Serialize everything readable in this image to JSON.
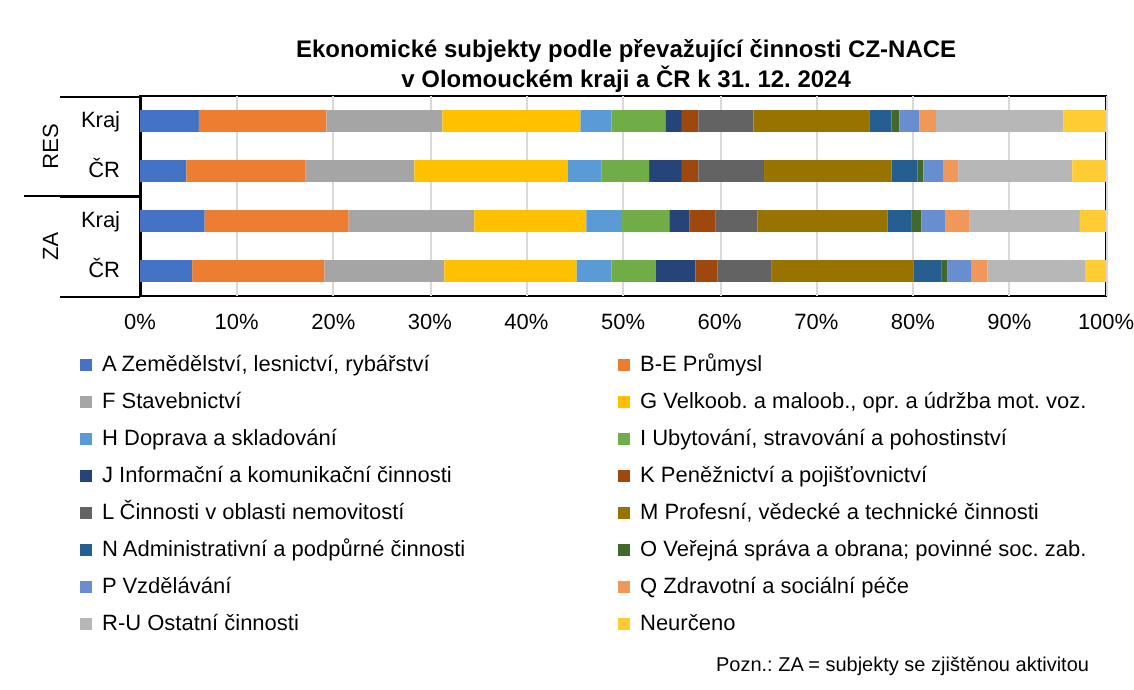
{
  "chart_data": {
    "type": "bar",
    "orientation": "horizontal",
    "stacked": true,
    "title": "Ekonomické subjekty podle převažující činnosti CZ-NACE\nv Olomouckém kraji a ČR k 31. 12. 2024",
    "categories": [
      "Kraj",
      "ČR",
      "Kraj",
      "ČR"
    ],
    "annotations": [
      "RES",
      "ZA",
      "Pozn.: ZA = subjekty se zjištěnou aktivitou"
    ],
    "xlim": [
      0,
      100
    ],
    "xticks": [
      {
        "value": 0,
        "label": "0%"
      },
      {
        "value": 10,
        "label": "10%"
      },
      {
        "value": 20,
        "label": "20%"
      },
      {
        "value": 30,
        "label": "30%"
      },
      {
        "value": 40,
        "label": "40%"
      },
      {
        "value": 50,
        "label": "50%"
      },
      {
        "value": 60,
        "label": "60%"
      },
      {
        "value": 70,
        "label": "70%"
      },
      {
        "value": 80,
        "label": "80%"
      },
      {
        "value": 90,
        "label": "90%"
      },
      {
        "value": 100,
        "label": "100%"
      }
    ],
    "grid": "x",
    "legend": "bottom",
    "series": [
      {
        "name": "A Zemědělství, lesnictví, rybářství",
        "color": "#4472c4",
        "values": [
          6.1,
          4.8,
          6.7,
          5.4
        ]
      },
      {
        "name": "B-E Průmysl",
        "color": "#ed7d31",
        "values": [
          13.2,
          12.3,
          14.9,
          13.7
        ]
      },
      {
        "name": "F Stavebnictví",
        "color": "#a5a5a5",
        "values": [
          12.0,
          11.3,
          13.0,
          12.4
        ]
      },
      {
        "name": "G Velkoob. a maloob., opr. a údržba mot. voz.",
        "color": "#ffc000",
        "values": [
          14.3,
          15.9,
          11.6,
          13.7
        ]
      },
      {
        "name": "H Doprava a skladování",
        "color": "#5b9bd5",
        "values": [
          3.2,
          3.5,
          3.7,
          3.6
        ]
      },
      {
        "name": "I Ubytování, stravování a pohostinství",
        "color": "#70ad47",
        "values": [
          5.6,
          4.9,
          4.9,
          4.6
        ]
      },
      {
        "name": "J Informační a komunikační činnosti",
        "color": "#264478",
        "values": [
          1.7,
          3.4,
          2.1,
          4.1
        ]
      },
      {
        "name": "K Peněžnictví a pojišťovnictví",
        "color": "#9e480e",
        "values": [
          1.7,
          1.7,
          2.7,
          2.3
        ]
      },
      {
        "name": "L Činnosti v oblasti nemovitostí",
        "color": "#636363",
        "values": [
          5.7,
          6.8,
          4.3,
          5.6
        ]
      },
      {
        "name": "M Profesní, vědecké a technické činnosti",
        "color": "#997300",
        "values": [
          12.0,
          13.2,
          13.5,
          14.7
        ]
      },
      {
        "name": "N Administrativní a podpůrné činnosti",
        "color": "#255e91",
        "values": [
          2.3,
          2.7,
          2.5,
          2.9
        ]
      },
      {
        "name": "O Veřejná správa a obrana; povinné soc. zab.",
        "color": "#43682b",
        "values": [
          0.8,
          0.6,
          1.0,
          0.6
        ]
      },
      {
        "name": "P Vzdělávání",
        "color": "#698ed0",
        "values": [
          2.1,
          2.1,
          2.5,
          2.5
        ]
      },
      {
        "name": "Q Zdravotní a sociální péče",
        "color": "#f1975a",
        "values": [
          1.7,
          1.5,
          2.5,
          1.6
        ]
      },
      {
        "name": "R-U Ostatní činnosti",
        "color": "#b7b7b7",
        "values": [
          13.2,
          11.8,
          11.4,
          10.2
        ]
      },
      {
        "name": "Neurčeno",
        "color": "#ffcd33",
        "values": [
          4.4,
          3.5,
          2.7,
          2.1
        ]
      }
    ]
  }
}
